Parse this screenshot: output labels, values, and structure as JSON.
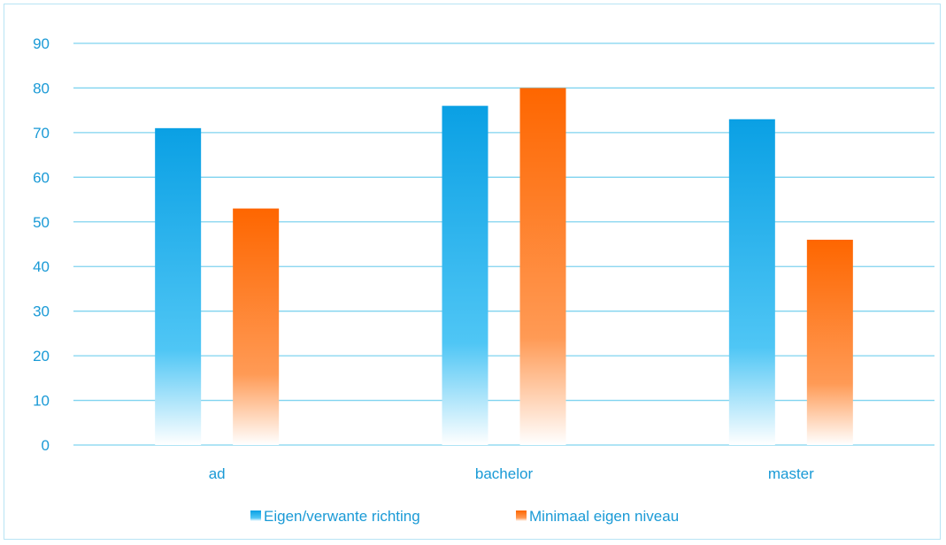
{
  "chart_data": {
    "type": "bar",
    "categories": [
      "ad",
      "bachelor",
      "master"
    ],
    "series": [
      {
        "name": "Eigen/verwante richting",
        "values": [
          71,
          76,
          73
        ]
      },
      {
        "name": "Minimaal eigen niveau",
        "values": [
          53,
          80,
          46
        ]
      }
    ],
    "title": "",
    "xlabel": "",
    "ylabel": "",
    "ylim": [
      0,
      90
    ],
    "yticks": [
      0,
      10,
      20,
      30,
      40,
      50,
      60,
      70,
      80,
      90
    ],
    "grid": true,
    "legend_position": "bottom"
  },
  "colors": {
    "series_1": "#0aa0e4",
    "series_1_mid": "#4fc6f5",
    "series_2": "#fe6600",
    "series_2_mid": "#ff9a55",
    "gridline": "#7fd3ef",
    "text": "#1a9ad6",
    "border": "#b8e4f4"
  }
}
